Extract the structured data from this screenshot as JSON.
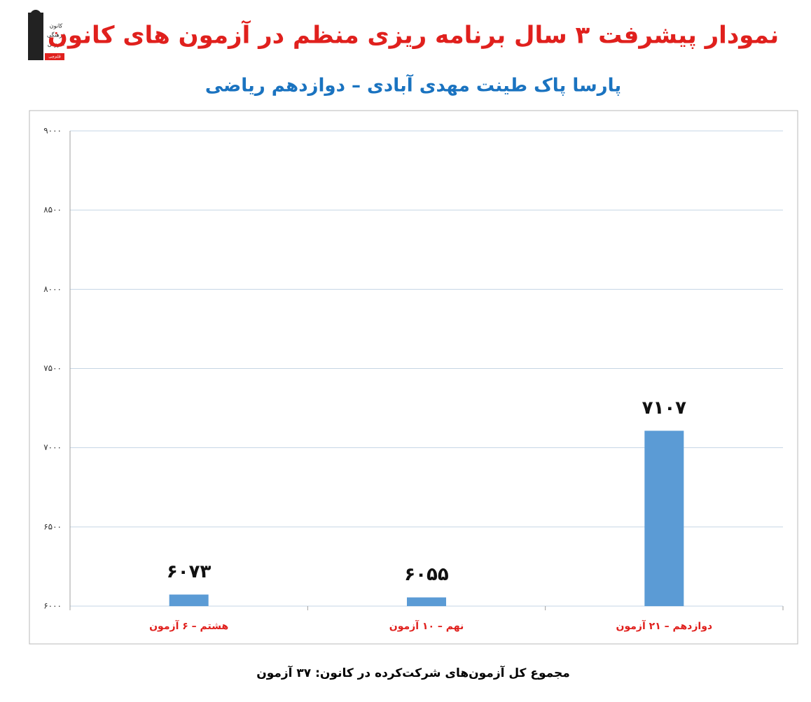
{
  "logo": {
    "lines": [
      "کانون",
      "فرهنگی",
      "آموزش",
      "قلم‌چی"
    ]
  },
  "chart_data": {
    "type": "bar",
    "title": "نمودار پیشرفت ۳ سال برنامه ریزی منظم در آزمون های کانون",
    "subtitle": "پارسا پاک طینت مهدی آبادی – دوازدهم ریاضی",
    "categories": [
      "هشتم – ۶ آزمون",
      "نهم – ۱۰ آزمون",
      "دوازدهم – ۲۱ آزمون"
    ],
    "values": [
      6073,
      6055,
      7107
    ],
    "value_labels": [
      "۶۰۷۳",
      "۶۰۵۵",
      "۷۱۰۷"
    ],
    "color": "#5b9bd5",
    "ylim": [
      6000,
      9000
    ],
    "yticks": [
      {
        "value": 6000,
        "label": "۶۰۰۰"
      },
      {
        "value": 6500,
        "label": "۶۵۰۰"
      },
      {
        "value": 7000,
        "label": "۷۰۰۰"
      },
      {
        "value": 7500,
        "label": "۷۵۰۰"
      },
      {
        "value": 8000,
        "label": "۸۰۰۰"
      },
      {
        "value": 8500,
        "label": "۸۵۰۰"
      },
      {
        "value": 9000,
        "label": "۹۰۰۰"
      }
    ],
    "grid": true,
    "footnote": "مجموع کل آزمون‌های شرکت‌کرده در کانون:  ۳۷ آزمون"
  }
}
